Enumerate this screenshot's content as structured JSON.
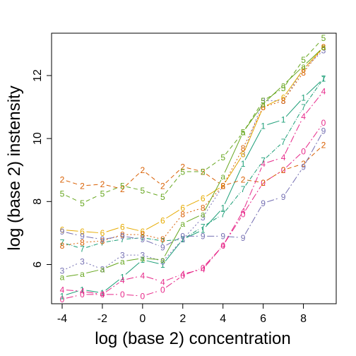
{
  "chart_data": {
    "type": "line",
    "xlabel": "log (base 2) concentration",
    "ylabel": "log (base 2) instensity",
    "xlim": [
      -4,
      9
    ],
    "ylim": [
      4.8,
      13.3
    ],
    "xticks": [
      -4,
      -2,
      0,
      2,
      4,
      6,
      8
    ],
    "yticks": [
      6,
      8,
      10,
      12
    ],
    "x": [
      -4,
      -3,
      -2,
      -1,
      0,
      1,
      2,
      3,
      4,
      5,
      6,
      7,
      8,
      9
    ],
    "grid": false,
    "legend": "none",
    "series": [
      {
        "marker": "0",
        "color": "#e7298a",
        "dash": "10,3,2,3",
        "values": [
          4.9,
          5.05,
          5.05,
          5.05,
          5.0,
          5.2,
          5.65,
          5.9,
          6.6,
          7.6,
          8.6,
          9.0,
          9.6,
          10.5
        ]
      },
      {
        "marker": "1",
        "color": "#1b9e77",
        "dash": "none",
        "values": [
          5.0,
          5.2,
          5.1,
          5.6,
          6.15,
          6.0,
          6.8,
          7.1,
          7.8,
          9.2,
          10.4,
          10.6,
          11.3,
          11.9
        ]
      },
      {
        "marker": "2",
        "color": "#d95f02",
        "dash": "6,4",
        "values": [
          8.7,
          8.5,
          8.55,
          8.4,
          9.0,
          8.5,
          9.1,
          8.95,
          8.5,
          8.7,
          8.6,
          9.0,
          9.2,
          9.8
        ]
      },
      {
        "marker": "3",
        "color": "#7570b3",
        "dash": "2,3",
        "values": [
          5.8,
          6.1,
          5.85,
          6.3,
          6.3,
          6.1,
          6.8,
          7.5,
          8.5,
          9.5,
          11.2,
          11.2,
          12.2,
          12.8
        ]
      },
      {
        "marker": "4",
        "color": "#e7298a",
        "dash": "10,3,2,3",
        "values": [
          5.2,
          5.15,
          5.05,
          5.5,
          5.65,
          5.45,
          5.7,
          5.85,
          6.6,
          7.7,
          9.2,
          9.4,
          10.7,
          11.5
        ]
      },
      {
        "marker": "5",
        "color": "#66a61e",
        "dash": "6,4",
        "values": [
          8.25,
          7.95,
          8.25,
          8.5,
          8.35,
          8.15,
          8.95,
          8.95,
          9.4,
          10.2,
          11.2,
          11.6,
          12.5,
          13.2
        ]
      },
      {
        "marker": "6",
        "color": "#e6ab02",
        "dash": "none",
        "values": [
          7.1,
          7.05,
          7.0,
          7.2,
          7.05,
          7.4,
          7.8,
          8.1,
          8.5,
          9.5,
          11.0,
          11.3,
          12.2,
          12.9
        ]
      },
      {
        "marker": "7",
        "color": "#1b9e77",
        "dash": "6,2,1,2",
        "values": [
          6.7,
          6.5,
          6.7,
          6.8,
          6.85,
          6.75,
          6.8,
          7.2,
          7.6,
          8.4,
          9.3,
          9.9,
          11.0,
          11.9
        ]
      },
      {
        "marker": "8",
        "color": "#d95f02",
        "dash": "2,3",
        "values": [
          6.6,
          6.7,
          6.75,
          6.95,
          6.95,
          6.8,
          7.6,
          7.8,
          8.5,
          9.7,
          11.0,
          11.2,
          12.1,
          12.9
        ]
      },
      {
        "marker": "9",
        "color": "#7570b3",
        "dash": "10,3,2,3",
        "values": [
          7.05,
          6.9,
          6.8,
          6.9,
          6.8,
          6.55,
          6.9,
          6.9,
          6.9,
          6.85,
          7.95,
          8.15,
          9.1,
          10.25
        ]
      },
      {
        "marker": "a",
        "color": "#66a61e",
        "dash": "none",
        "values": [
          5.6,
          5.7,
          5.85,
          6.1,
          6.2,
          6.15,
          7.3,
          7.6,
          8.8,
          10.2,
          11.1,
          11.7,
          12.3,
          12.9
        ]
      }
    ]
  }
}
